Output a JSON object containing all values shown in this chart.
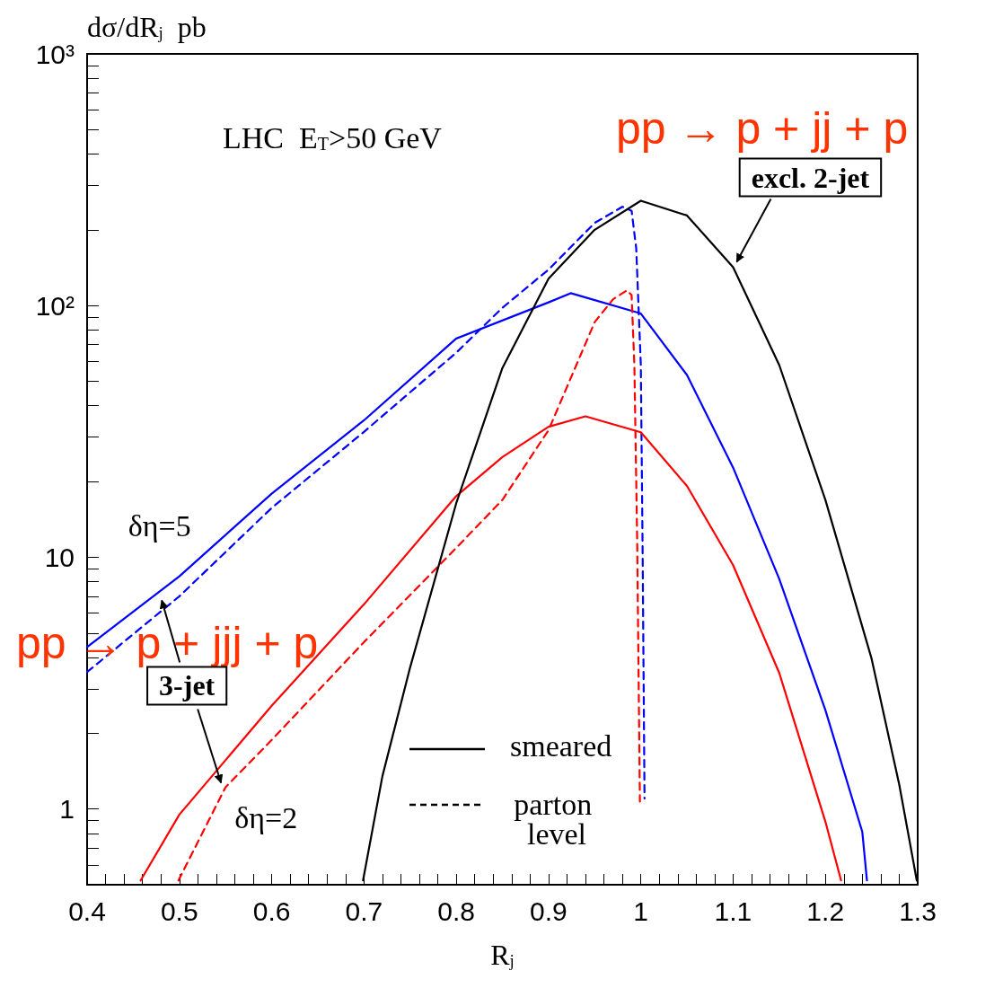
{
  "chart_data": {
    "type": "line",
    "xlabel": "R$_{j}$",
    "ylabel": "dσ/dR$_{j}$  pb",
    "log": "y",
    "marker": "none",
    "xlim": [
      0.4,
      1.3
    ],
    "xticks": [
      0.4,
      {
        "value": 0.42,
        "label": null
      },
      {
        "value": 0.44,
        "label": null
      },
      {
        "value": 0.46,
        "label": null
      },
      {
        "value": 0.48,
        "label": null
      },
      0.5,
      {
        "value": 0.52,
        "label": null
      },
      {
        "value": 0.54,
        "label": null
      },
      {
        "value": 0.56,
        "label": null
      },
      {
        "value": 0.58,
        "label": null
      },
      0.6,
      {
        "value": 0.62,
        "label": null
      },
      {
        "value": 0.64,
        "label": null
      },
      {
        "value": 0.66,
        "label": null
      },
      {
        "value": 0.68,
        "label": null
      },
      0.7,
      {
        "value": 0.72,
        "label": null
      },
      {
        "value": 0.74,
        "label": null
      },
      {
        "value": 0.76,
        "label": null
      },
      {
        "value": 0.78,
        "label": null
      },
      0.8,
      {
        "value": 0.82,
        "label": null
      },
      {
        "value": 0.84,
        "label": null
      },
      {
        "value": 0.86,
        "label": null
      },
      {
        "value": 0.88,
        "label": null
      },
      0.9,
      {
        "value": 0.92,
        "label": null
      },
      {
        "value": 0.94,
        "label": null
      },
      {
        "value": 0.96,
        "label": null
      },
      {
        "value": 0.98,
        "label": null
      },
      1,
      {
        "value": 1.02,
        "label": null
      },
      {
        "value": 1.04,
        "label": null
      },
      {
        "value": 1.06,
        "label": null
      },
      {
        "value": 1.08,
        "label": null
      },
      1.1,
      {
        "value": 1.12,
        "label": null
      },
      {
        "value": 1.14,
        "label": null
      },
      {
        "value": 1.16,
        "label": null
      },
      {
        "value": 1.18,
        "label": null
      },
      1.2,
      {
        "value": 1.22,
        "label": null
      },
      {
        "value": 1.24,
        "label": null
      },
      {
        "value": 1.26,
        "label": null
      },
      {
        "value": 1.28,
        "label": null
      },
      1.3
    ],
    "ylim": [
      0.5,
      1000
    ],
    "yticks": [
      {
        "value": 0.6,
        "label": null
      },
      {
        "value": 0.7,
        "label": null
      },
      {
        "value": 0.8,
        "label": null
      },
      {
        "value": 0.9,
        "label": null
      },
      1,
      {
        "value": 2,
        "label": null
      },
      {
        "value": 3,
        "label": null
      },
      {
        "value": 4,
        "label": null
      },
      {
        "value": 5,
        "label": null
      },
      {
        "value": 6,
        "label": null
      },
      {
        "value": 7,
        "label": null
      },
      {
        "value": 8,
        "label": null
      },
      {
        "value": 9,
        "label": null
      },
      10,
      {
        "value": 20,
        "label": null
      },
      {
        "value": 30,
        "label": null
      },
      {
        "value": 40,
        "label": null
      },
      {
        "value": 50,
        "label": null
      },
      {
        "value": 60,
        "label": null
      },
      {
        "value": 70,
        "label": null
      },
      {
        "value": 80,
        "label": null
      },
      {
        "value": 90,
        "label": null
      },
      {
        "value": 100,
        "label": "10²"
      },
      {
        "value": 200,
        "label": null
      },
      {
        "value": 300,
        "label": null
      },
      {
        "value": 400,
        "label": null
      },
      {
        "value": 500,
        "label": null
      },
      {
        "value": 600,
        "label": null
      },
      {
        "value": 700,
        "label": null
      },
      {
        "value": 800,
        "label": null
      },
      {
        "value": 900,
        "label": null
      },
      {
        "value": 1000,
        "label": "10³"
      }
    ],
    "series": [
      {
        "color": "#0000ff",
        "line_style": "solid",
        "x": [
          0.4,
          0.5,
          0.6,
          0.7,
          0.8,
          0.9,
          0.924,
          1.0,
          1.05,
          1.1,
          1.15,
          1.2,
          1.24,
          1.245
        ],
        "values": [
          4.4,
          8.4,
          17.9,
          35,
          74,
          103,
          112,
          93,
          53,
          22.7,
          8.2,
          2.47,
          0.81,
          0.52
        ]
      },
      {
        "color": "#0000ff",
        "line_style": "dashed",
        "x": [
          0.4,
          0.5,
          0.6,
          0.7,
          0.8,
          0.85,
          0.9,
          0.95,
          0.98,
          0.99,
          0.995,
          1.0,
          1.002,
          1.004
        ],
        "values": [
          3.5,
          7.0,
          15.7,
          31.5,
          65,
          98,
          139,
          213,
          247,
          238,
          169,
          58,
          10,
          1.1
        ]
      },
      {
        "color": "#ff0000",
        "line_style": "solid",
        "x": [
          0.458,
          0.5,
          0.6,
          0.7,
          0.8,
          0.85,
          0.9,
          0.94,
          1.0,
          1.05,
          1.1,
          1.15,
          1.2,
          1.217
        ],
        "values": [
          0.52,
          0.95,
          2.57,
          6.5,
          17.5,
          25,
          33,
          36.3,
          31.4,
          19.2,
          9.3,
          3.47,
          0.89,
          0.52
        ]
      },
      {
        "color": "#ff0000",
        "line_style": "dashed",
        "x": [
          0.499,
          0.55,
          0.6,
          0.7,
          0.8,
          0.85,
          0.9,
          0.95,
          0.97,
          0.985,
          0.99,
          0.993,
          0.996,
          0.999
        ],
        "values": [
          0.52,
          1.22,
          1.88,
          4.6,
          10.9,
          16.9,
          32,
          86,
          106,
          115,
          110,
          58,
          12,
          1.07
        ]
      },
      {
        "color": "#000000",
        "line_style": "solid",
        "x": [
          0.699,
          0.72,
          0.75,
          0.8,
          0.85,
          0.9,
          0.95,
          1.0,
          1.05,
          1.1,
          1.15,
          1.2,
          1.25,
          1.28,
          1.299
        ],
        "values": [
          0.52,
          1.35,
          3.65,
          16.4,
          56.5,
          128,
          200,
          261,
          228,
          142,
          58,
          16.9,
          3.96,
          1.25,
          0.52
        ]
      }
    ],
    "annotations": [
      "LHC  E$_{T}$>50 GeV",
      "pp → p + jj + p",
      {
        "text": "excl. 2-jet",
        "x": 1.1,
        "y": 142
      },
      "pp → p + jjj + p",
      {
        "text": "3-jet",
        "x": 0.55,
        "y": 1.22
      },
      {
        "text": "δη=5",
        "x": 0.5,
        "y": 8.4
      },
      {
        "text": "δη=2",
        "x": 0.55,
        "y": 1.22
      },
      "smeared",
      "parton level"
    ]
  }
}
